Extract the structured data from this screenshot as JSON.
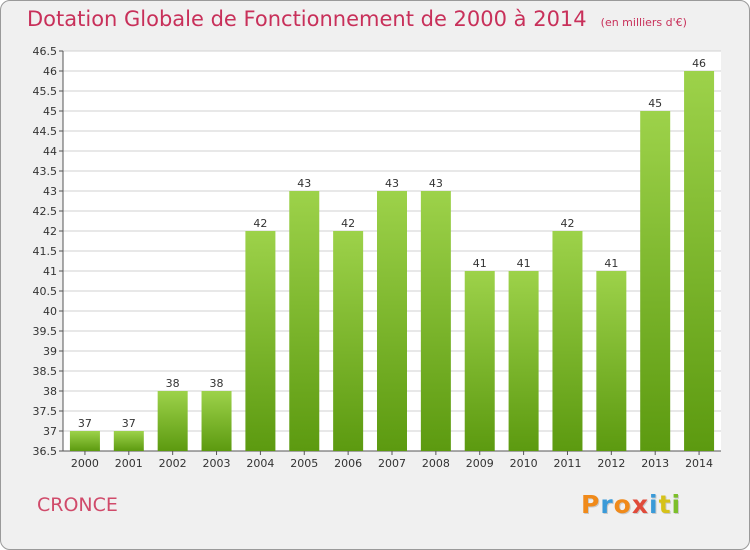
{
  "page": {
    "title": "Dotation Globale de Fonctionnement de 2000 à 2014",
    "subtitle": "(en milliers d'€)",
    "commune": "CRONCE",
    "logo": "Proxiti"
  },
  "colors": {
    "title": "#c8305a",
    "bar_light": "#9dd24a",
    "bar_dark": "#5c9a10",
    "grid": "#d2d2d2",
    "logo": [
      "#f08a1a",
      "#3a9ad8",
      "#f08a1a",
      "#e04a3a",
      "#3a9ad8",
      "#d6c21a",
      "#7cbf2a"
    ]
  },
  "chart_data": {
    "type": "bar",
    "title": "Dotation Globale de Fonctionnement de 2000 à 2014",
    "xlabel": "",
    "ylabel": "",
    "categories": [
      "2000",
      "2001",
      "2002",
      "2003",
      "2004",
      "2005",
      "2006",
      "2007",
      "2008",
      "2009",
      "2010",
      "2011",
      "2012",
      "2013",
      "2014"
    ],
    "values": [
      37,
      37,
      38,
      38,
      42,
      43,
      42,
      43,
      43,
      41,
      41,
      42,
      41,
      45,
      46
    ],
    "labels": [
      "37",
      "37",
      "38",
      "38",
      "42",
      "43",
      "42",
      "43",
      "43",
      "41",
      "41",
      "42",
      "41",
      "45",
      "46"
    ],
    "ylim": [
      36.5,
      46.5
    ],
    "yticks": [
      "36.5",
      "37",
      "37.5",
      "38",
      "38.5",
      "39",
      "39.5",
      "40",
      "40.5",
      "41",
      "41.5",
      "42",
      "42.5",
      "43",
      "43.5",
      "44",
      "44.5",
      "45",
      "45.5",
      "46",
      "46.5"
    ],
    "grid": true
  }
}
